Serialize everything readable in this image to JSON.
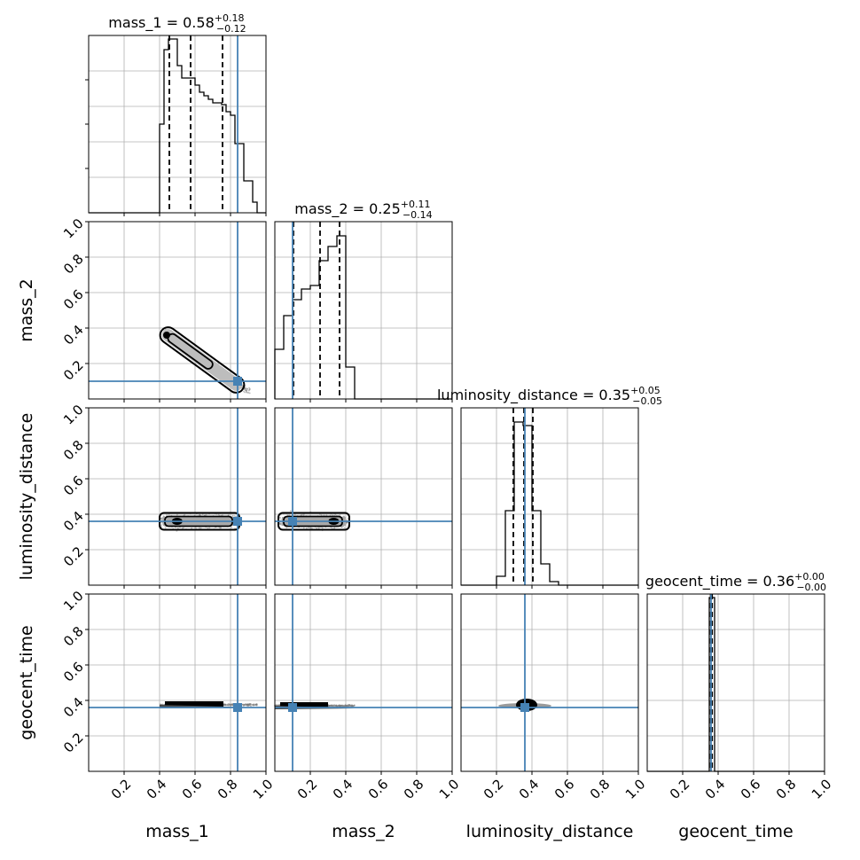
{
  "chart_data": {
    "type": "corner",
    "parameters": [
      "mass_1",
      "mass_2",
      "luminosity_distance",
      "geocent_time"
    ],
    "axis_range": [
      0,
      1
    ],
    "ticks": [
      0.2,
      0.4,
      0.6,
      0.8,
      1.0
    ],
    "tick_labels": [
      "0.2",
      "0.4",
      "0.6",
      "0.8",
      "1.0"
    ],
    "grid": true,
    "colors": {
      "truth": "#4682b4",
      "hist": "#000000",
      "grid": "#b0b0b0",
      "density": "#000000"
    },
    "truths": [
      0.84,
      0.1,
      0.36,
      0.36
    ],
    "titles": [
      {
        "label": "mass_1 = 0.58",
        "sup": "+0.18",
        "sub": "−0.12"
      },
      {
        "label": "mass_2 = 0.25",
        "sup": "+0.11",
        "sub": "−0.14"
      },
      {
        "label": "luminosity_distance = 0.35",
        "sup": "+0.05",
        "sub": "−0.05"
      },
      {
        "label": "geocent_time = 0.36",
        "sup": "+0.00",
        "sub": "−0.00"
      }
    ],
    "quantiles": [
      [
        0.455,
        0.575,
        0.755
      ],
      [
        0.105,
        0.255,
        0.365
      ],
      [
        0.295,
        0.355,
        0.405
      ],
      [
        0.358,
        0.362,
        0.366
      ]
    ],
    "histograms": [
      {
        "bin_edges": [
          0.4,
          0.425,
          0.45,
          0.475,
          0.5,
          0.525,
          0.55,
          0.575,
          0.6,
          0.625,
          0.65,
          0.675,
          0.7,
          0.725,
          0.75,
          0.775,
          0.8,
          0.825,
          0.85,
          0.875,
          0.9,
          0.925,
          0.95
        ],
        "counts": [
          0.5,
          0.92,
          0.98,
          0.98,
          0.83,
          0.76,
          0.76,
          0.76,
          0.72,
          0.68,
          0.66,
          0.64,
          0.62,
          0.62,
          0.61,
          0.57,
          0.55,
          0.39,
          0.39,
          0.18,
          0.18,
          0.06
        ]
      },
      {
        "bin_edges": [
          0.0,
          0.05,
          0.1,
          0.15,
          0.2,
          0.25,
          0.3,
          0.35,
          0.4,
          0.45
        ],
        "counts": [
          0.28,
          0.47,
          0.56,
          0.62,
          0.64,
          0.78,
          0.86,
          0.92,
          0.18
        ]
      },
      {
        "bin_edges": [
          0.0,
          0.05,
          0.1,
          0.15,
          0.2,
          0.25,
          0.3,
          0.35,
          0.4,
          0.45,
          0.5,
          0.55,
          0.6
        ],
        "counts": [
          0.0,
          0.0,
          0.0,
          0.0,
          0.05,
          0.42,
          0.92,
          0.9,
          0.42,
          0.12,
          0.02,
          0.0
        ]
      },
      {
        "bin_edges": [
          0.34,
          0.35,
          0.36,
          0.37,
          0.38,
          0.39,
          0.4
        ],
        "counts": [
          0.0,
          0.98,
          0.98,
          0.98,
          0.0,
          0.0
        ]
      }
    ],
    "joint_distributions": [
      {
        "x": "mass_1",
        "y": "mass_2",
        "shape": "diagonal_band",
        "from": [
          0.42,
          0.38
        ],
        "to": [
          0.9,
          0.04
        ]
      },
      {
        "x": "mass_1",
        "y": "luminosity_distance",
        "shape": "horizontal_blob",
        "x_range": [
          0.4,
          0.85
        ],
        "y_center": 0.36,
        "y_spread": 0.05
      },
      {
        "x": "mass_2",
        "y": "luminosity_distance",
        "shape": "horizontal_blob",
        "x_range": [
          0.02,
          0.42
        ],
        "y_center": 0.36,
        "y_spread": 0.05
      },
      {
        "x": "mass_1",
        "y": "geocent_time",
        "shape": "thin_line",
        "x_range": [
          0.4,
          0.95
        ],
        "y_center": 0.375
      },
      {
        "x": "mass_2",
        "y": "geocent_time",
        "shape": "thin_line",
        "x_range": [
          0.0,
          0.45
        ],
        "y_center": 0.37
      },
      {
        "x": "luminosity_distance",
        "y": "geocent_time",
        "shape": "small_blob",
        "x_range": [
          0.25,
          0.55
        ],
        "y_center": 0.37
      }
    ]
  }
}
